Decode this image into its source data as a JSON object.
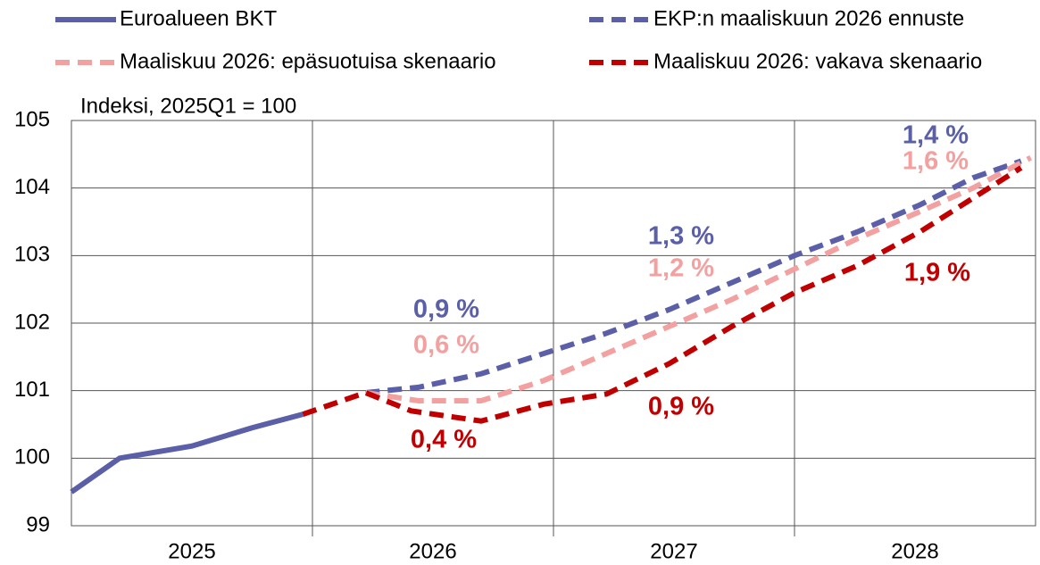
{
  "chart_data": {
    "type": "line",
    "ylabel": "Indeksi, 2025Q1 = 100",
    "xlim": [
      2025,
      2029
    ],
    "xticks": [
      {
        "value": 2025.5,
        "label": "2025"
      },
      {
        "value": 2026.5,
        "label": "2026"
      },
      {
        "value": 2027.5,
        "label": "2027"
      },
      {
        "value": 2028.5,
        "label": "2028"
      }
    ],
    "xgrid": [
      2026,
      2027,
      2028
    ],
    "ylim": [
      99,
      105
    ],
    "yticks": [
      99,
      100,
      101,
      102,
      103,
      104,
      105
    ],
    "grid": true,
    "series": [
      {
        "name": "Euroalueen BKT",
        "color": "#5a5fa8",
        "dashed": false,
        "x": [
          2025.0,
          2025.2,
          2025.25,
          2025.5,
          2025.75,
          2025.96
        ],
        "values": [
          99.5,
          100.0,
          100.03,
          100.18,
          100.45,
          100.65
        ]
      },
      {
        "name": "EKP:n maaliskuun 2026 ennuste",
        "color": "#5a5fa8",
        "dashed": true,
        "x": [
          2026.22,
          2026.44,
          2026.7,
          2026.96,
          2027.22,
          2027.48,
          2027.74,
          2028.0,
          2028.26,
          2028.52,
          2028.74,
          2028.94
        ],
        "values": [
          100.97,
          101.05,
          101.25,
          101.55,
          101.85,
          102.2,
          102.6,
          103.0,
          103.35,
          103.75,
          104.15,
          104.4
        ]
      },
      {
        "name": "Maaliskuu 2026: epäsuotuisa skenaario",
        "color": "#f2a0a0",
        "dashed": true,
        "x": [
          2026.22,
          2026.44,
          2026.7,
          2026.96,
          2027.22,
          2027.48,
          2027.74,
          2028.0,
          2028.26,
          2028.52,
          2028.74,
          2028.98
        ],
        "values": [
          100.97,
          100.85,
          100.85,
          101.15,
          101.55,
          101.95,
          102.35,
          102.8,
          103.25,
          103.65,
          104.0,
          104.45
        ]
      },
      {
        "name": "Maaliskuu 2026: vakava skenaario",
        "color": "#c00000",
        "dashed": true,
        "x": [
          2025.96,
          2026.22,
          2026.41,
          2026.7,
          2026.96,
          2027.22,
          2027.48,
          2027.74,
          2028.0,
          2028.26,
          2028.52,
          2028.74,
          2028.94
        ],
        "values": [
          100.65,
          100.97,
          100.7,
          100.55,
          100.8,
          100.95,
          101.4,
          101.95,
          102.45,
          102.85,
          103.35,
          103.85,
          104.3
        ]
      }
    ],
    "annotations": [
      {
        "text": "0,9 %",
        "color": "#5a5fa8"
      },
      {
        "text": "0,6 %",
        "color": "#f2a0a0"
      },
      {
        "text": "0,4 %",
        "color": "#c00000"
      },
      {
        "text": "1,3 %",
        "color": "#5a5fa8"
      },
      {
        "text": "1,2 %",
        "color": "#f2a0a0"
      },
      {
        "text": "0,9 %",
        "color": "#c00000"
      },
      {
        "text": "1,4 %",
        "color": "#5a5fa8"
      },
      {
        "text": "1,6 %",
        "color": "#f2a0a0"
      },
      {
        "text": "1,9 %",
        "color": "#c00000"
      }
    ]
  }
}
